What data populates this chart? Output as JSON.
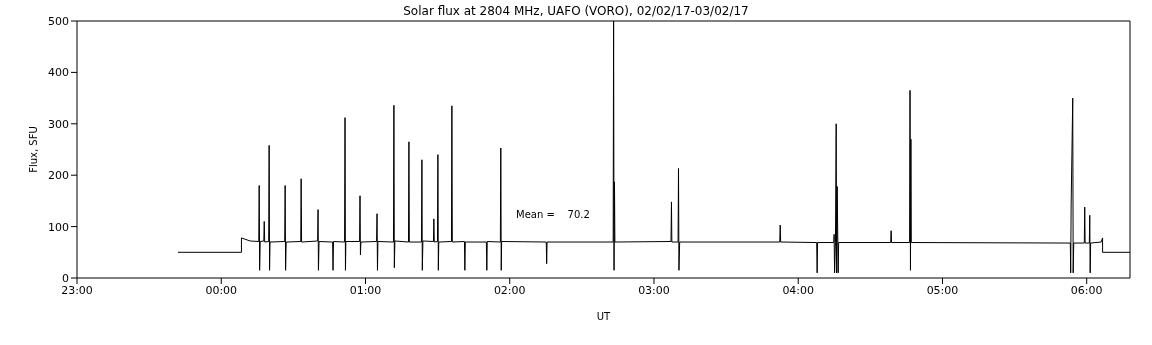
{
  "chart_data": {
    "type": "line",
    "title": "Solar flux at 2804 MHz, UAFO (VORO),  02/02/17-03/02/17",
    "xlabel": "UT",
    "ylabel": "Flux, SFU",
    "annotations": [
      "Mean =    70.2"
    ],
    "xlim": [
      "--02-02T23:00",
      "--02-03T06:18"
    ],
    "xticks": [
      {
        "value": "--02-02T23:00",
        "label": "23:00"
      },
      {
        "value": "--02-03T00:00",
        "label": "00:00"
      },
      {
        "value": "--02-03T01:00",
        "label": "01:00"
      },
      {
        "value": "--02-03T02:00",
        "label": "02:00"
      },
      {
        "value": "--02-03T03:00",
        "label": "03:00"
      },
      {
        "value": "--02-03T04:00",
        "label": "04:00"
      },
      {
        "value": "--02-03T05:00",
        "label": "05:00"
      },
      {
        "value": "--02-03T06:00",
        "label": "06:00"
      }
    ],
    "ylim": [
      0,
      500
    ],
    "yticks": [
      0,
      100,
      200,
      300,
      400,
      500
    ],
    "marker": "none",
    "line_style": "solid",
    "series": [
      {
        "color": "#000000",
        "x": [
          "--02-02T23:42:00",
          "--02-03T00:08:24",
          "--02-03T00:08:24",
          "--02-03T00:12:00",
          "--02-03T00:15:36",
          "--02-03T00:15:47",
          "--02-03T00:15:58",
          "--02-03T00:16:12",
          "--02-03T00:17:42",
          "--02-03T00:17:53",
          "--02-03T00:18:04",
          "--02-03T00:19:44",
          "--02-03T00:19:55",
          "--02-03T00:20:06",
          "--02-03T00:20:17",
          "--02-03T00:26:24",
          "--02-03T00:26:35",
          "--02-03T00:26:46",
          "--02-03T00:27:00",
          "--02-03T00:33:04",
          "--02-03T00:33:14",
          "--02-03T00:33:25",
          "--02-03T00:40:05",
          "--02-03T00:40:16",
          "--02-03T00:40:26",
          "--02-03T00:40:41",
          "--02-03T00:46:19",
          "--02-03T00:46:30",
          "--02-03T00:46:41",
          "--02-03T00:51:18",
          "--02-03T00:51:29",
          "--02-03T00:51:40",
          "--02-03T00:51:50",
          "--02-03T00:57:32",
          "--02-03T00:57:43",
          "--02-03T00:57:54",
          "--02-03T00:58:05",
          "--02-03T01:04:37",
          "--02-03T01:04:48",
          "--02-03T01:04:59",
          "--02-03T01:05:10",
          "--02-03T01:11:38",
          "--02-03T01:11:49",
          "--02-03T01:12:00",
          "--02-03T01:12:14",
          "--02-03T01:17:53",
          "--02-03T01:18:04",
          "--02-03T01:18:14",
          "--02-03T01:23:17",
          "--02-03T01:23:28",
          "--02-03T01:23:38",
          "--02-03T01:23:53",
          "--02-03T01:28:16",
          "--02-03T01:28:26",
          "--02-03T01:28:37",
          "--02-03T01:29:56",
          "--02-03T01:30:07",
          "--02-03T01:30:18",
          "--02-03T01:30:29",
          "--02-03T01:35:46",
          "--02-03T01:35:56",
          "--02-03T01:36:07",
          "--02-03T01:41:10",
          "--02-03T01:41:20",
          "--02-03T01:41:31",
          "--02-03T01:50:17",
          "--02-03T01:50:28",
          "--02-03T01:50:38",
          "--02-03T01:56:06",
          "--02-03T01:56:17",
          "--02-03T01:56:28",
          "--02-03T01:56:38",
          "--02-03T02:15:11",
          "--02-03T02:15:22",
          "--02-03T02:15:32",
          "--02-03T02:43:01",
          "--02-03T02:43:12",
          "--02-03T02:43:23",
          "--02-03T02:43:34",
          "--02-03T02:43:44",
          "--02-03T03:07:05",
          "--02-03T03:07:16",
          "--02-03T03:07:26",
          "--02-03T03:10:01",
          "--02-03T03:10:12",
          "--02-03T03:10:23",
          "--02-03T03:10:41",
          "--02-03T03:52:19",
          "--02-03T03:52:30",
          "--02-03T03:52:41",
          "--02-03T04:07:41",
          "--02-03T04:07:52",
          "--02-03T04:08:02",
          "--02-03T04:14:46",
          "--02-03T04:14:56",
          "--02-03T04:15:07",
          "--02-03T04:15:29",
          "--02-03T04:15:47",
          "--02-03T04:15:58",
          "--02-03T04:16:12",
          "--02-03T04:16:37",
          "--02-03T04:16:48",
          "--02-03T04:38:28",
          "--02-03T04:38:38",
          "--02-03T04:38:49",
          "--02-03T04:46:19",
          "--02-03T04:46:30",
          "--02-03T04:46:41",
          "--02-03T04:46:52",
          "--02-03T04:47:02",
          "--02-03T05:53:10",
          "--02-03T05:53:20",
          "--02-03T05:53:31",
          "--02-03T05:54:11",
          "--02-03T05:54:22",
          "--02-03T05:54:36",
          "--02-03T05:58:59",
          "--02-03T05:59:10",
          "--02-03T05:59:20",
          "--02-03T06:01:05",
          "--02-03T06:01:16",
          "--02-03T06:01:26",
          "--02-03T06:01:37",
          "--02-03T06:06:00",
          "--02-03T06:06:36",
          "--02-03T06:06:36",
          "--02-03T06:18:00"
        ],
        "values": [
          50,
          50,
          78,
          72,
          71,
          180,
          15,
          71,
          72,
          110,
          70,
          71,
          258,
          15,
          70,
          71,
          180,
          15,
          70,
          71,
          193,
          70,
          72,
          133,
          15,
          71,
          70,
          15,
          71,
          70,
          312,
          15,
          71,
          71,
          160,
          45,
          70,
          71,
          125,
          15,
          71,
          70,
          336,
          20,
          72,
          70,
          265,
          70,
          70,
          230,
          15,
          72,
          71,
          115,
          70,
          71,
          240,
          15,
          70,
          71,
          335,
          70,
          71,
          15,
          70,
          70,
          15,
          71,
          70,
          253,
          15,
          71,
          70,
          28,
          70,
          70,
          500,
          15,
          187,
          70,
          71,
          148,
          70,
          70,
          213,
          15,
          70,
          70,
          103,
          70,
          69,
          10,
          69,
          69,
          85,
          10,
          69,
          300,
          10,
          178,
          10,
          69,
          69,
          92,
          69,
          69,
          365,
          15,
          270,
          69,
          68,
          10,
          140,
          350,
          10,
          68,
          68,
          138,
          68,
          68,
          122,
          10,
          68,
          70,
          78,
          50,
          50
        ]
      }
    ]
  }
}
